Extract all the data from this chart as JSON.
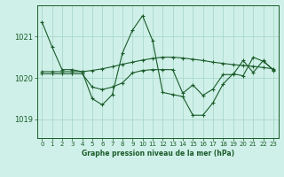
{
  "title": "Graphe pression niveau de la mer (hPa)",
  "background_color": "#cff0e8",
  "grid_color": "#a8d8cc",
  "line_color": "#1a5c2a",
  "xlim": [
    -0.5,
    23.5
  ],
  "ylim": [
    1018.55,
    1021.75
  ],
  "yticks": [
    1019,
    1020,
    1021
  ],
  "xticks": [
    0,
    1,
    2,
    3,
    4,
    5,
    6,
    7,
    8,
    9,
    10,
    11,
    12,
    13,
    14,
    15,
    16,
    17,
    18,
    19,
    20,
    21,
    22,
    23
  ],
  "series": [
    [
      1021.35,
      1020.75,
      1020.2,
      1020.2,
      1020.15,
      1019.5,
      1019.35,
      1019.6,
      1020.6,
      1021.15,
      1021.5,
      1020.9,
      1019.65,
      1019.6,
      1019.55,
      1019.1,
      1019.1,
      1019.4,
      1019.85,
      1020.1,
      1020.05,
      1020.5,
      1020.4,
      1020.2
    ],
    [
      1020.15,
      1020.15,
      1020.15,
      1020.15,
      1020.15,
      1020.18,
      1020.22,
      1020.27,
      1020.33,
      1020.38,
      1020.43,
      1020.47,
      1020.5,
      1020.5,
      1020.48,
      1020.45,
      1020.42,
      1020.38,
      1020.35,
      1020.32,
      1020.3,
      1020.28,
      1020.25,
      1020.22
    ],
    [
      1020.1,
      1020.1,
      1020.1,
      1020.1,
      1020.1,
      1019.78,
      1019.72,
      1019.78,
      1019.88,
      1020.12,
      1020.18,
      1020.2,
      1020.2,
      1020.2,
      1019.63,
      1019.83,
      1019.58,
      1019.73,
      1020.08,
      1020.08,
      1020.42,
      1020.13,
      1020.42,
      1020.18
    ]
  ]
}
